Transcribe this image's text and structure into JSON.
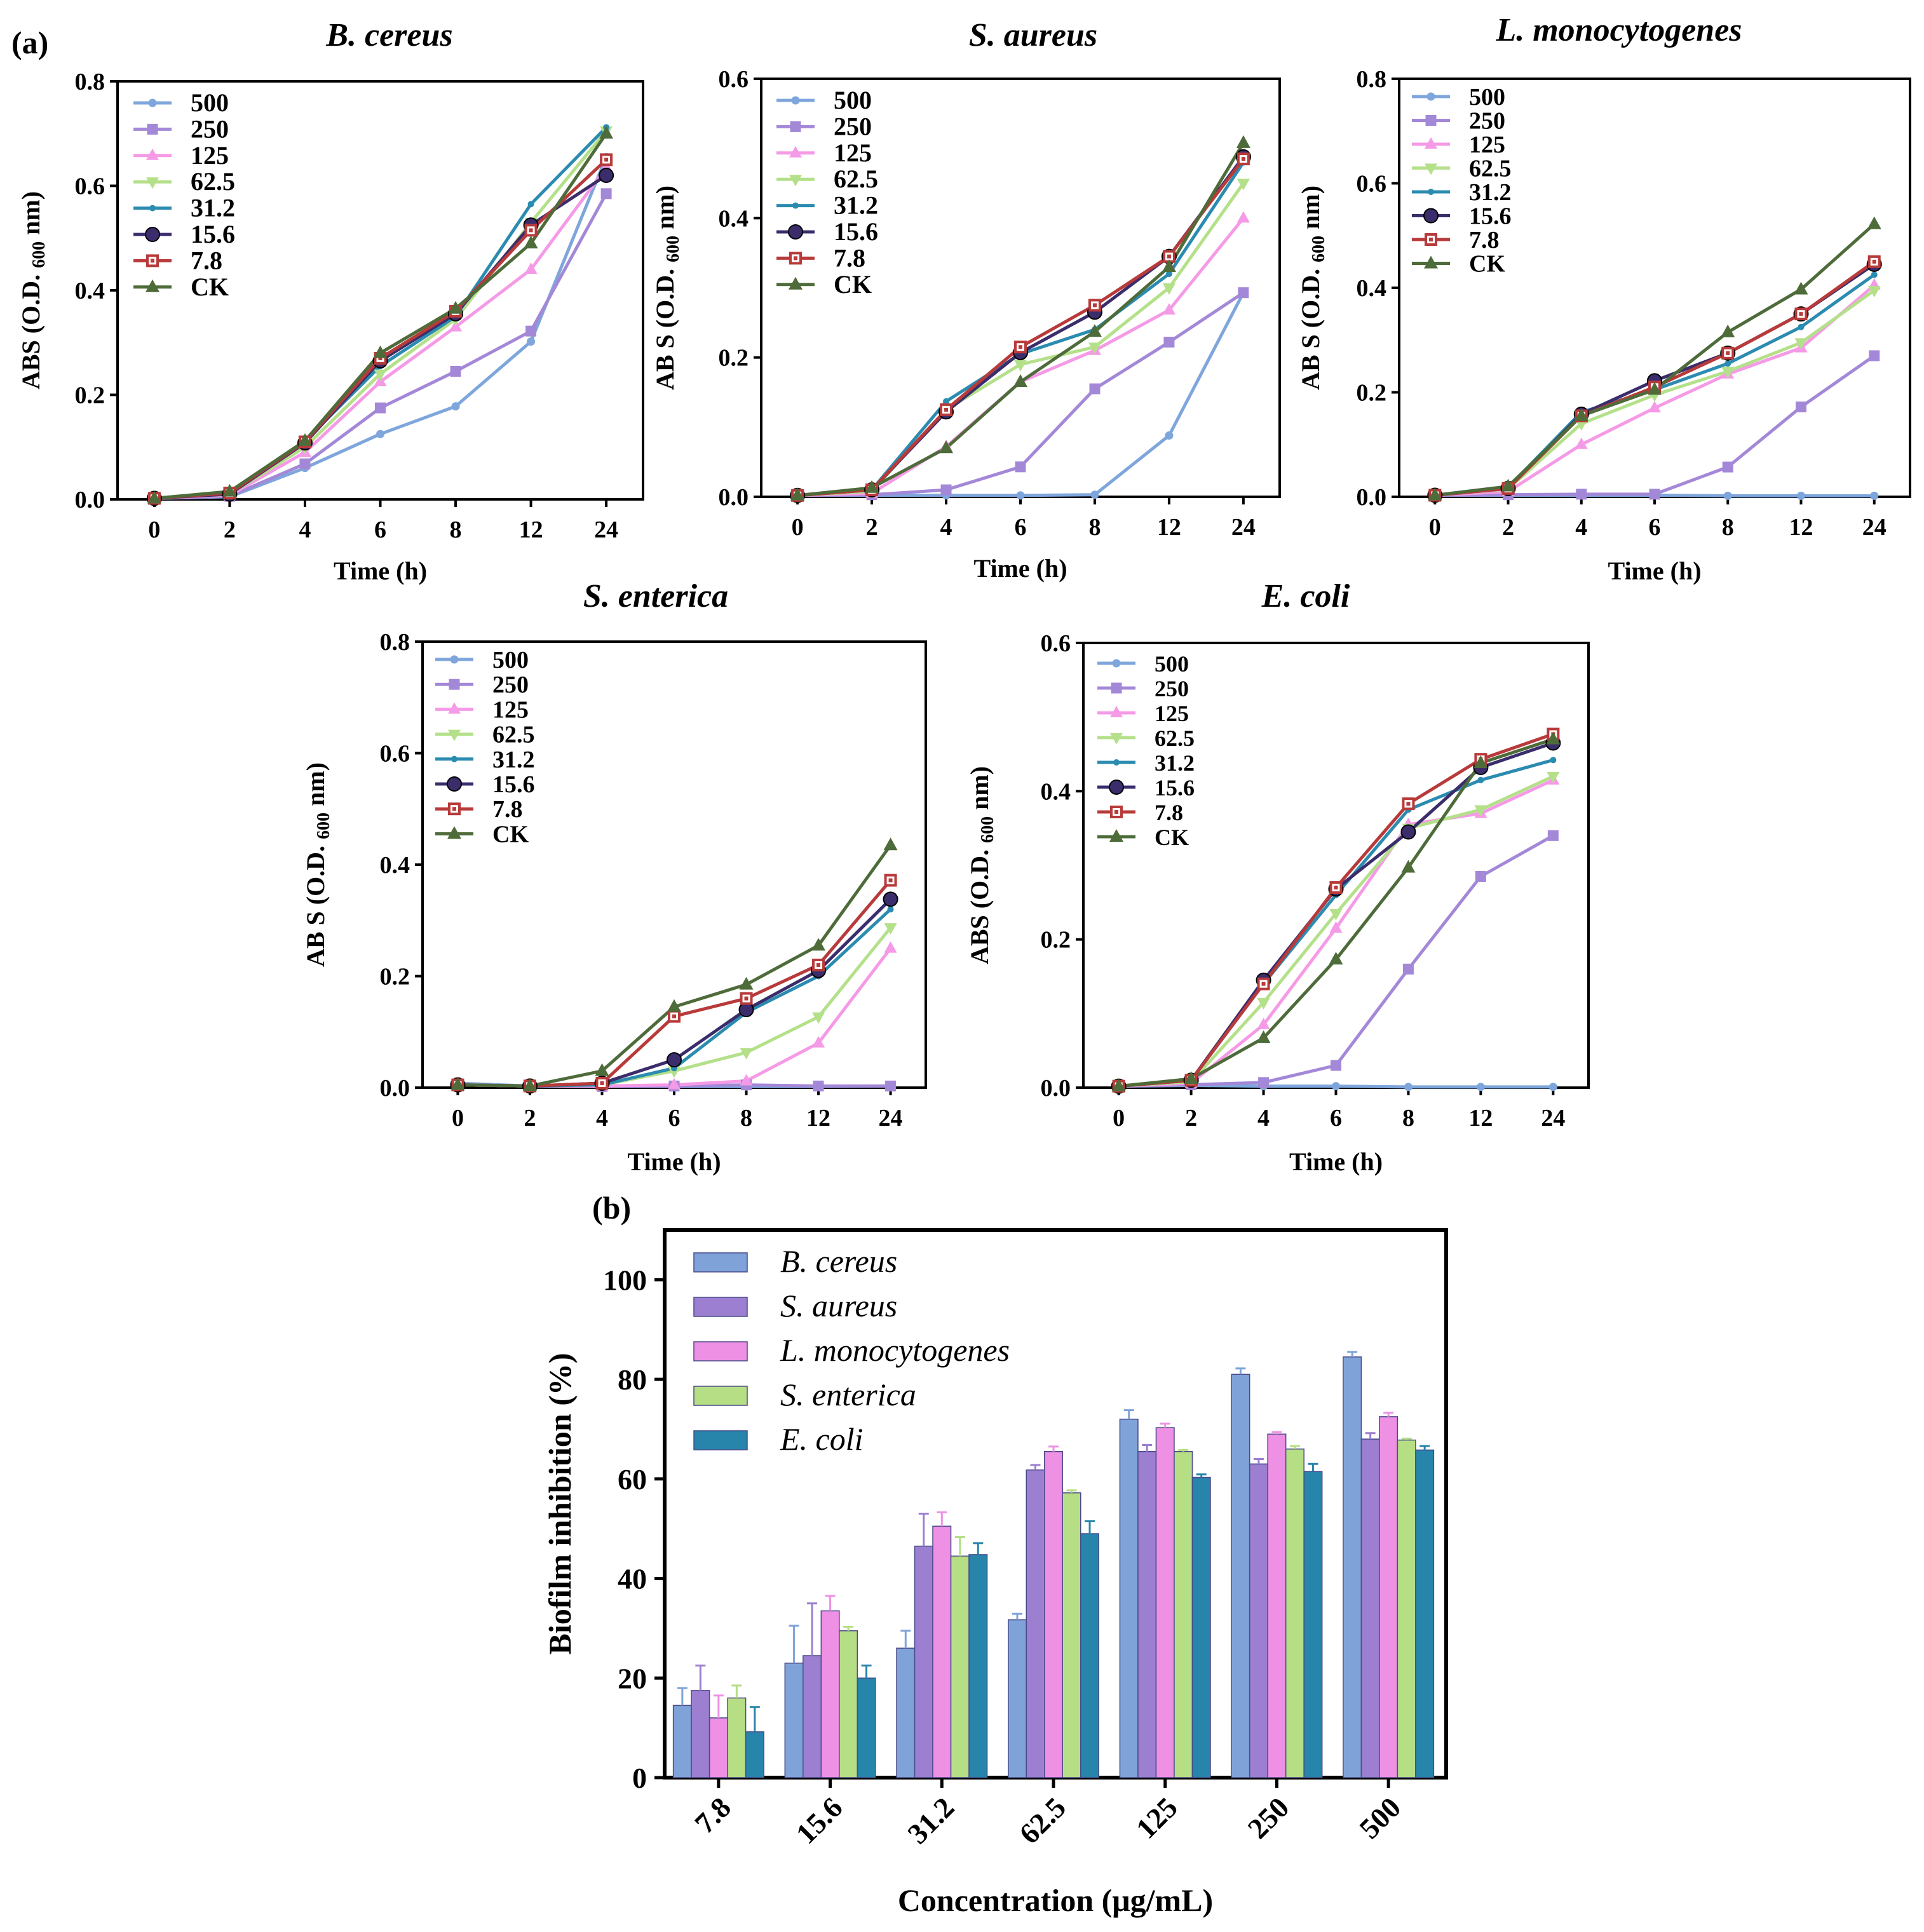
{
  "panel_labels": {
    "a": "(a)",
    "b": "(b)"
  },
  "legend_line_labels": [
    "500",
    "250",
    "125",
    "62.5",
    "31.2",
    "15.6",
    "7.8",
    "CK"
  ],
  "series_colors": [
    "#7ea6dc",
    "#a488d8",
    "#f59ae6",
    "#b4e08a",
    "#2b8bb0",
    "#3b2d6b",
    "#b83a3a",
    "#4e6b3a"
  ],
  "bar_colors": [
    "#7fa3d8",
    "#9c7fd0",
    "#ee90e4",
    "#b6de85",
    "#2784ab"
  ],
  "chart_data": [
    {
      "type": "line",
      "title": "B. cereus",
      "xlabel": "Time (h)",
      "ylabel_main": "ABS (O.D.",
      "ylabel_sub": "600",
      "ylabel_end": "nm)",
      "x": [
        "0",
        "2",
        "4",
        "6",
        "8",
        "12",
        "24"
      ],
      "ylim": [
        0,
        0.8
      ],
      "yticks": [
        "0.0",
        "0.2",
        "0.4",
        "0.6",
        "0.8"
      ],
      "series": [
        {
          "name": "500",
          "values": [
            0.002,
            0.005,
            0.06,
            0.125,
            0.178,
            0.302,
            0.655
          ]
        },
        {
          "name": "250",
          "values": [
            0.002,
            0.006,
            0.068,
            0.175,
            0.245,
            0.322,
            0.585
          ]
        },
        {
          "name": "125",
          "values": [
            0.002,
            0.008,
            0.09,
            0.225,
            0.33,
            0.44,
            0.635
          ]
        },
        {
          "name": "62.5",
          "values": [
            0.002,
            0.01,
            0.1,
            0.24,
            0.345,
            0.53,
            0.705
          ]
        },
        {
          "name": "31.2",
          "values": [
            0.002,
            0.012,
            0.112,
            0.255,
            0.35,
            0.565,
            0.712
          ]
        },
        {
          "name": "15.6",
          "values": [
            0.002,
            0.01,
            0.108,
            0.265,
            0.355,
            0.525,
            0.62
          ]
        },
        {
          "name": "7.8",
          "values": [
            0.002,
            0.012,
            0.11,
            0.27,
            0.36,
            0.515,
            0.65
          ]
        },
        {
          "name": "CK",
          "values": [
            0.002,
            0.015,
            0.112,
            0.28,
            0.365,
            0.49,
            0.7
          ]
        }
      ]
    },
    {
      "type": "line",
      "title": "S. aureus",
      "xlabel": "Time (h)",
      "ylabel_main": "AB S (O.D.",
      "ylabel_sub": "600",
      "ylabel_end": "nm)",
      "x": [
        "0",
        "2",
        "4",
        "6",
        "8",
        "12",
        "24"
      ],
      "ylim": [
        0,
        0.6
      ],
      "yticks": [
        "0.0",
        "0.2",
        "0.4",
        "0.6"
      ],
      "series": [
        {
          "name": "500",
          "values": [
            0.002,
            0.002,
            0.002,
            0.002,
            0.003,
            0.088,
            0.293
          ]
        },
        {
          "name": "250",
          "values": [
            0.002,
            0.003,
            0.01,
            0.043,
            0.155,
            0.222,
            0.293
          ]
        },
        {
          "name": "125",
          "values": [
            0.002,
            0.005,
            0.072,
            0.165,
            0.21,
            0.268,
            0.4
          ]
        },
        {
          "name": "62.5",
          "values": [
            0.002,
            0.008,
            0.125,
            0.19,
            0.215,
            0.3,
            0.45
          ]
        },
        {
          "name": "31.2",
          "values": [
            0.002,
            0.01,
            0.137,
            0.205,
            0.24,
            0.32,
            0.48
          ]
        },
        {
          "name": "15.6",
          "values": [
            0.002,
            0.01,
            0.122,
            0.207,
            0.265,
            0.345,
            0.488
          ]
        },
        {
          "name": "7.8",
          "values": [
            0.002,
            0.01,
            0.125,
            0.215,
            0.275,
            0.345,
            0.485
          ]
        },
        {
          "name": "CK",
          "values": [
            0.002,
            0.013,
            0.07,
            0.165,
            0.237,
            0.33,
            0.508
          ]
        }
      ]
    },
    {
      "type": "line",
      "title": "L. monocytogenes",
      "xlabel": "Time (h)",
      "ylabel_main": "AB S (O.D.",
      "ylabel_sub": "600",
      "ylabel_end": "nm)",
      "x": [
        "0",
        "2",
        "4",
        "6",
        "8",
        "12",
        "24"
      ],
      "ylim": [
        0,
        0.8
      ],
      "yticks": [
        "0.0",
        "0.2",
        "0.4",
        "0.6",
        "0.8"
      ],
      "series": [
        {
          "name": "500",
          "values": [
            0.003,
            0.003,
            0.003,
            0.003,
            0.002,
            0.002,
            0.002
          ]
        },
        {
          "name": "250",
          "values": [
            0.003,
            0.004,
            0.005,
            0.005,
            0.057,
            0.172,
            0.27
          ]
        },
        {
          "name": "125",
          "values": [
            0.003,
            0.01,
            0.1,
            0.17,
            0.235,
            0.285,
            0.405
          ]
        },
        {
          "name": "62.5",
          "values": [
            0.003,
            0.015,
            0.14,
            0.195,
            0.24,
            0.295,
            0.395
          ]
        },
        {
          "name": "31.2",
          "values": [
            0.003,
            0.018,
            0.162,
            0.205,
            0.255,
            0.325,
            0.425
          ]
        },
        {
          "name": "15.6",
          "values": [
            0.003,
            0.016,
            0.158,
            0.222,
            0.275,
            0.35,
            0.445
          ]
        },
        {
          "name": "7.8",
          "values": [
            0.003,
            0.016,
            0.155,
            0.21,
            0.275,
            0.35,
            0.45
          ]
        },
        {
          "name": "CK",
          "values": [
            0.003,
            0.02,
            0.155,
            0.205,
            0.315,
            0.397,
            0.522
          ]
        }
      ]
    },
    {
      "type": "line",
      "title": "S. enterica",
      "xlabel": "Time (h)",
      "ylabel_main": "AB S (O.D.",
      "ylabel_sub": "600",
      "ylabel_end": "nm)",
      "x": [
        "0",
        "2",
        "4",
        "6",
        "8",
        "12",
        "24"
      ],
      "ylim": [
        0,
        0.8
      ],
      "yticks": [
        "0.0",
        "0.2",
        "0.4",
        "0.6",
        "0.8"
      ],
      "series": [
        {
          "name": "500",
          "values": [
            0.008,
            0.003,
            0.002,
            0.002,
            0.002,
            0.002,
            0.003
          ]
        },
        {
          "name": "250",
          "values": [
            0.005,
            0.003,
            0.002,
            0.003,
            0.005,
            0.003,
            0.003
          ]
        },
        {
          "name": "125",
          "values": [
            0.005,
            0.003,
            0.003,
            0.005,
            0.012,
            0.08,
            0.25
          ]
        },
        {
          "name": "62.5",
          "values": [
            0.005,
            0.003,
            0.005,
            0.03,
            0.063,
            0.127,
            0.287
          ]
        },
        {
          "name": "31.2",
          "values": [
            0.005,
            0.003,
            0.005,
            0.035,
            0.135,
            0.2,
            0.32
          ]
        },
        {
          "name": "15.6",
          "values": [
            0.005,
            0.003,
            0.008,
            0.05,
            0.14,
            0.21,
            0.338
          ]
        },
        {
          "name": "7.8",
          "values": [
            0.005,
            0.003,
            0.008,
            0.128,
            0.16,
            0.22,
            0.372
          ]
        },
        {
          "name": "CK",
          "values": [
            0.005,
            0.003,
            0.03,
            0.145,
            0.185,
            0.255,
            0.435
          ]
        }
      ]
    },
    {
      "type": "line",
      "title": "E. coli",
      "xlabel": "Time (h)",
      "ylabel_main": "ABS (O.D.",
      "ylabel_sub": "600",
      "ylabel_end": "nm)",
      "x": [
        "0",
        "2",
        "4",
        "6",
        "8",
        "12",
        "24"
      ],
      "ylim": [
        0,
        0.6
      ],
      "yticks": [
        "0.0",
        "0.2",
        "0.4",
        "0.6"
      ],
      "series": [
        {
          "name": "500",
          "values": [
            0.002,
            0.003,
            0.002,
            0.002,
            0.001,
            0.001,
            0.001
          ]
        },
        {
          "name": "250",
          "values": [
            0.002,
            0.004,
            0.007,
            0.03,
            0.16,
            0.285,
            0.34
          ]
        },
        {
          "name": "125",
          "values": [
            0.002,
            0.006,
            0.085,
            0.215,
            0.355,
            0.37,
            0.415
          ]
        },
        {
          "name": "62.5",
          "values": [
            0.002,
            0.008,
            0.115,
            0.235,
            0.35,
            0.375,
            0.42
          ]
        },
        {
          "name": "31.2",
          "values": [
            0.002,
            0.01,
            0.14,
            0.26,
            0.375,
            0.415,
            0.442
          ]
        },
        {
          "name": "15.6",
          "values": [
            0.002,
            0.01,
            0.145,
            0.268,
            0.345,
            0.432,
            0.465
          ]
        },
        {
          "name": "7.8",
          "values": [
            0.002,
            0.01,
            0.14,
            0.27,
            0.383,
            0.443,
            0.477
          ]
        },
        {
          "name": "CK",
          "values": [
            0.002,
            0.012,
            0.067,
            0.173,
            0.297,
            0.438,
            0.47
          ]
        }
      ]
    },
    {
      "type": "bar",
      "title": "",
      "xlabel": "Concentration (μg/mL)",
      "ylabel": "Biofilm inhibition (%)",
      "categories": [
        "7.8",
        "15.6",
        "31.2",
        "62.5",
        "125",
        "250",
        "500"
      ],
      "ylim": [
        0,
        110
      ],
      "yticks": [
        "0",
        "20",
        "40",
        "60",
        "80",
        "100"
      ],
      "series": [
        {
          "name": "B. cereus",
          "values": [
            14.5,
            23,
            26,
            31.7,
            72,
            81,
            84.5
          ],
          "errors": [
            3.5,
            7.5,
            3.5,
            1.2,
            1.8,
            1.2,
            1.0
          ]
        },
        {
          "name": "S. aureus",
          "values": [
            17.5,
            24.5,
            46.5,
            61.8,
            65.5,
            63,
            68
          ],
          "errors": [
            5,
            10.5,
            6.5,
            1,
            1.3,
            1,
            1.2
          ]
        },
        {
          "name": "L. monocytogenes",
          "values": [
            12,
            33.5,
            50.5,
            65.5,
            70.3,
            69,
            72.5
          ],
          "errors": [
            4.5,
            3,
            2.8,
            1,
            0.8,
            0.4,
            0.8
          ]
        },
        {
          "name": "S. enterica",
          "values": [
            16,
            29.5,
            44.5,
            57.2,
            65.5,
            66,
            67.8
          ],
          "errors": [
            2.5,
            0.8,
            3.8,
            0.5,
            0.3,
            0.6,
            0.3
          ]
        },
        {
          "name": "E. coli",
          "values": [
            9.2,
            20,
            44.8,
            49,
            60.3,
            61.5,
            65.8
          ],
          "errors": [
            5,
            2.5,
            2.3,
            2.5,
            0.6,
            1.5,
            0.8
          ]
        }
      ]
    }
  ]
}
